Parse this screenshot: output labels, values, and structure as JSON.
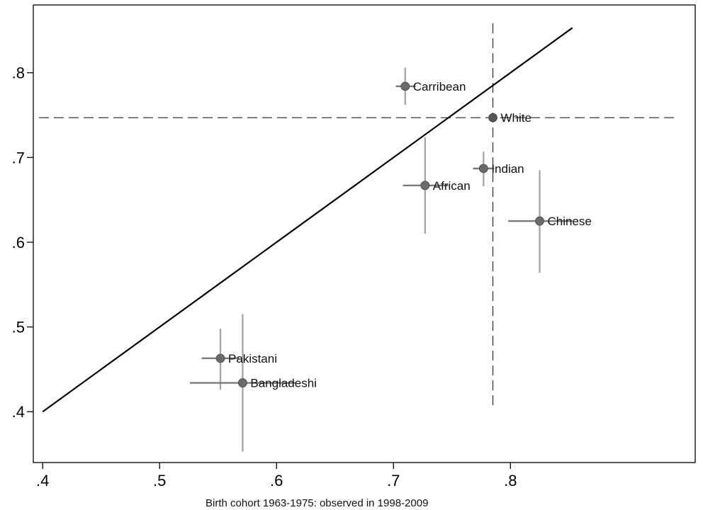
{
  "chart_data": {
    "type": "scatter",
    "title": "",
    "xlabel": "Birth cohort 1963-1975: observed in 1998-2009",
    "ylabel": "",
    "xlim": [
      0.392,
      0.958
    ],
    "ylim": [
      0.34,
      0.88
    ],
    "x_ticks": [
      0.4,
      0.5,
      0.6,
      0.7,
      0.8
    ],
    "x_tick_labels": [
      ".4",
      ".5",
      ".6",
      ".7",
      ".8"
    ],
    "y_ticks": [
      0.4,
      0.5,
      0.6,
      0.7,
      0.8
    ],
    "y_tick_labels": [
      ".4",
      ".5",
      ".6",
      ".7",
      ".8"
    ],
    "grid": false,
    "legend": "none",
    "points": [
      {
        "label": "Carribean",
        "x": 0.71,
        "y": 0.784,
        "x_err": [
          0.702,
          0.719
        ],
        "y_err": [
          0.762,
          0.806
        ]
      },
      {
        "label": "White",
        "x": 0.785,
        "y": 0.747,
        "x_err": [
          0.785,
          0.785
        ],
        "y_err": [
          0.747,
          0.747
        ]
      },
      {
        "label": "Indian",
        "x": 0.777,
        "y": 0.687,
        "x_err": [
          0.768,
          0.786
        ],
        "y_err": [
          0.666,
          0.707
        ]
      },
      {
        "label": "African",
        "x": 0.727,
        "y": 0.667,
        "x_err": [
          0.708,
          0.747
        ],
        "y_err": [
          0.61,
          0.724
        ]
      },
      {
        "label": "Chinese",
        "x": 0.825,
        "y": 0.625,
        "x_err": [
          0.798,
          0.853
        ],
        "y_err": [
          0.564,
          0.685
        ]
      },
      {
        "label": "Pakistani",
        "x": 0.552,
        "y": 0.463,
        "x_err": [
          0.536,
          0.568
        ],
        "y_err": [
          0.426,
          0.498
        ]
      },
      {
        "label": "Bangladeshi",
        "x": 0.571,
        "y": 0.434,
        "x_err": [
          0.526,
          0.616
        ],
        "y_err": [
          0.353,
          0.515
        ]
      }
    ],
    "reference_lines": {
      "horizontal_y": 0.747,
      "vertical_x": 0.785,
      "diagonal": {
        "x": [
          0.4,
          0.853
        ],
        "y": [
          0.4,
          0.853
        ]
      }
    },
    "colors": {
      "point": "#6b6b6b",
      "point_white": "#555555",
      "x_error": "#7a7a7a",
      "y_error": "#a8a8a8",
      "diagonal": "#000000",
      "reference": "#333333",
      "axis": "#000000"
    }
  }
}
